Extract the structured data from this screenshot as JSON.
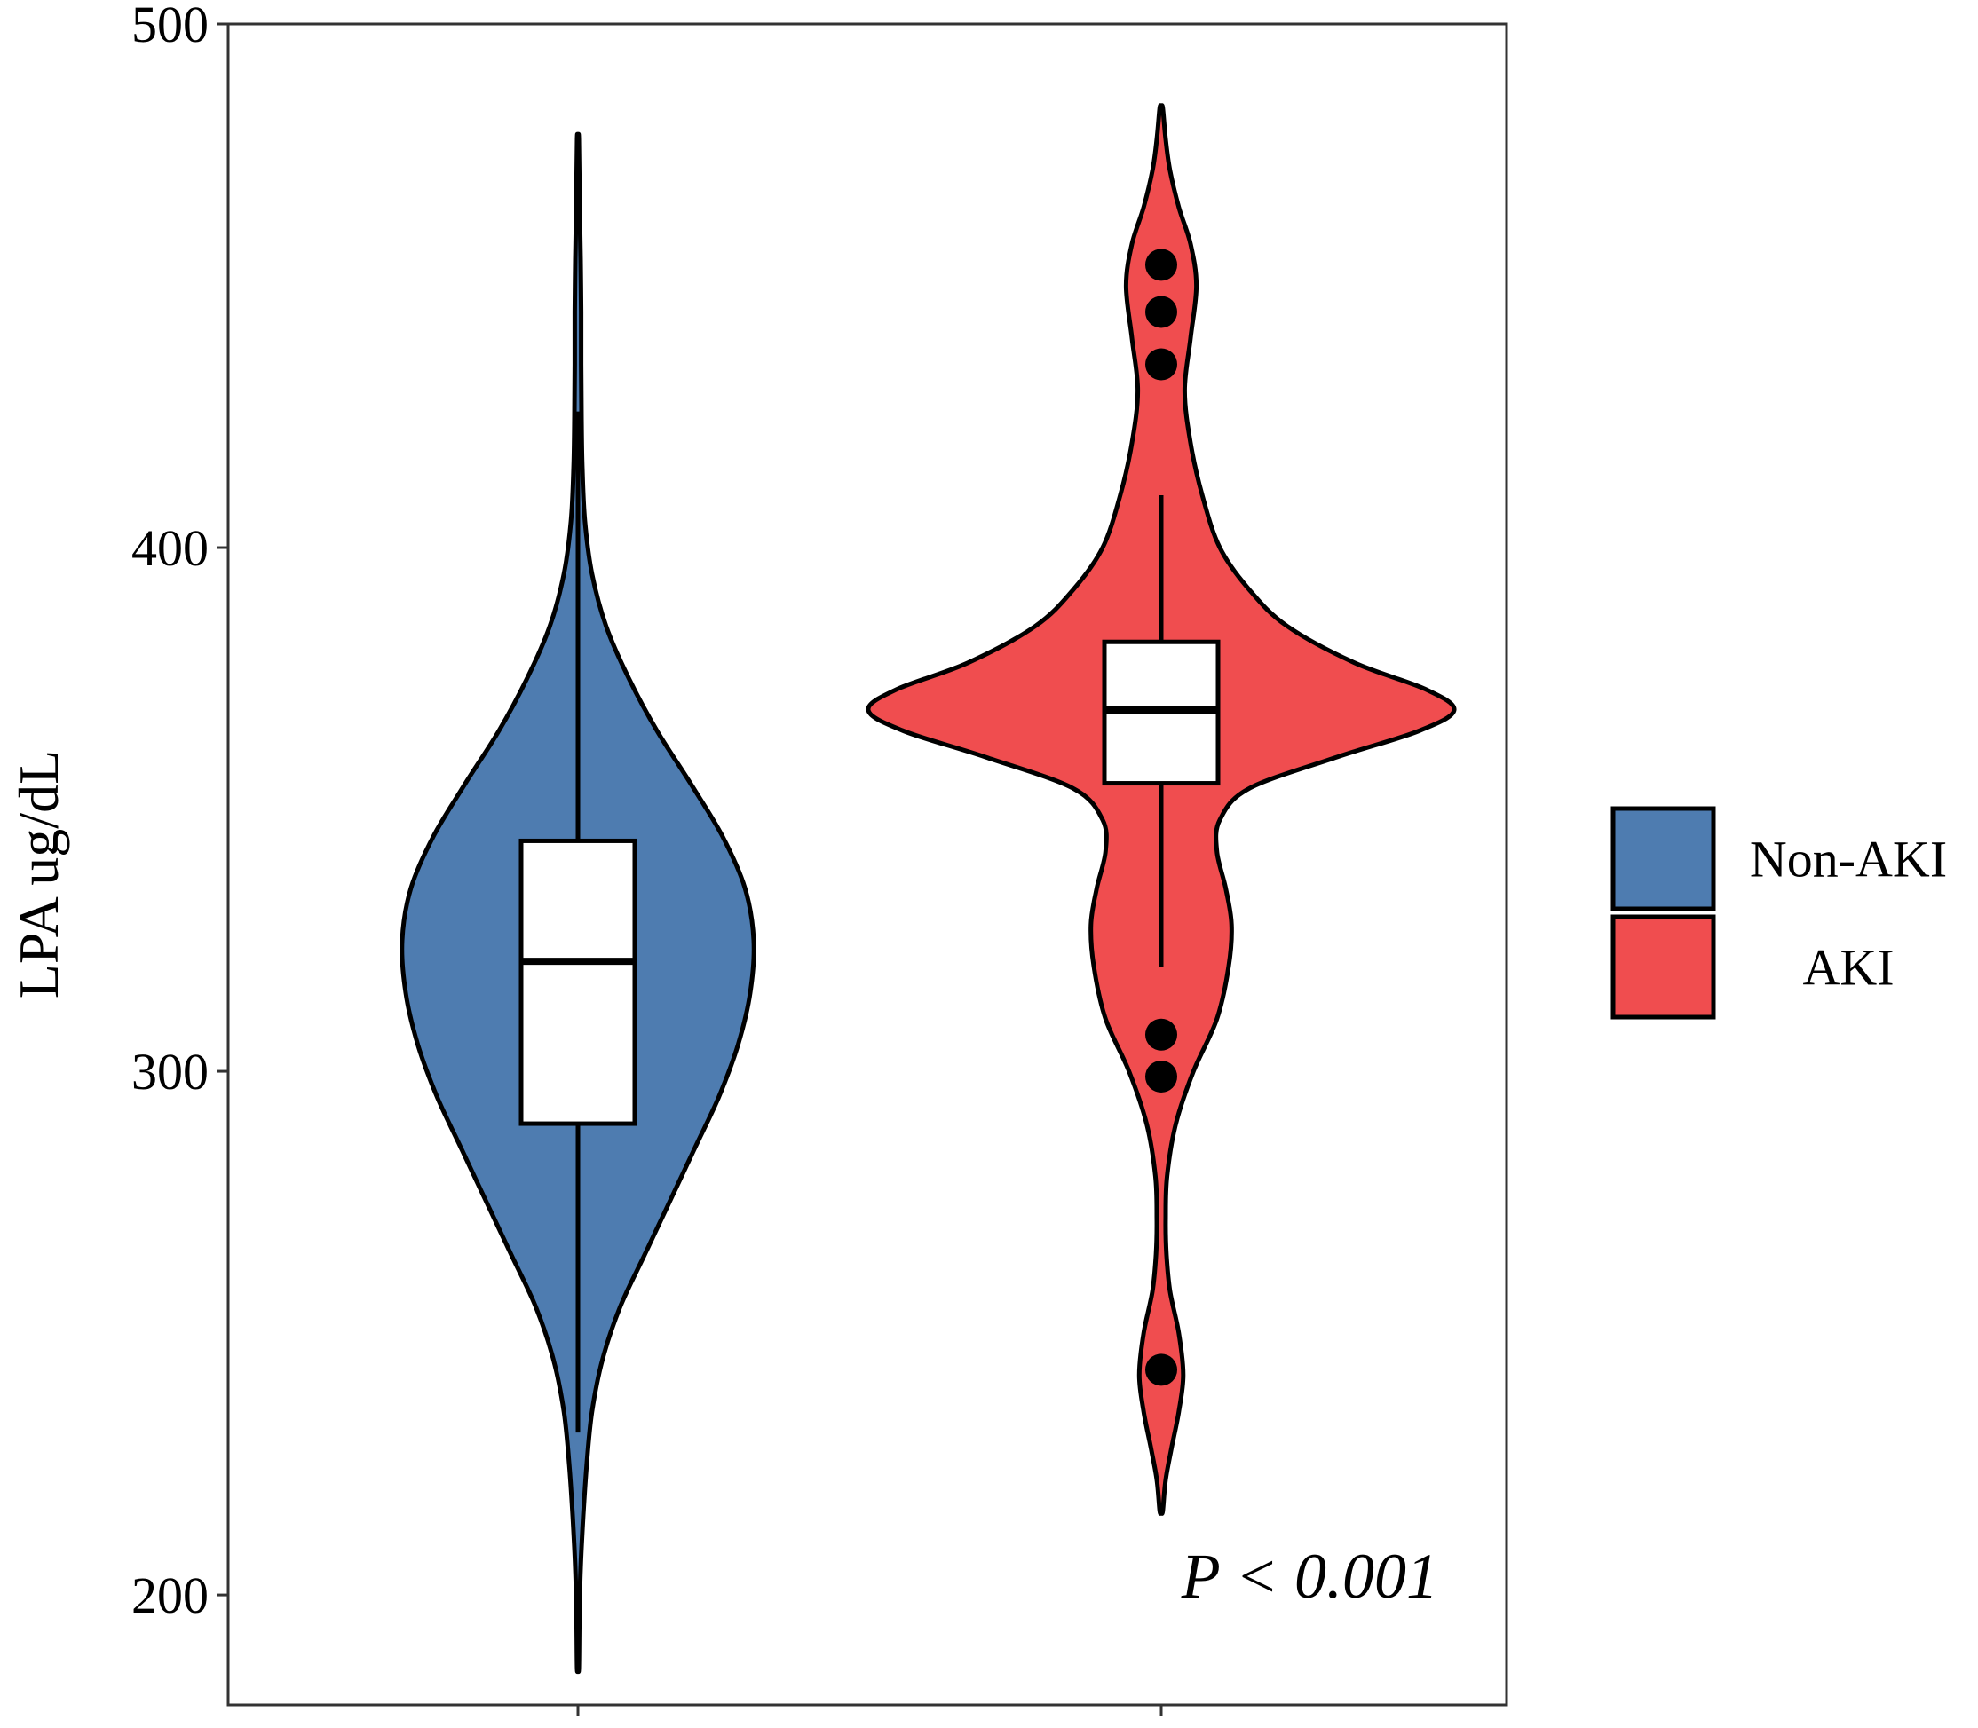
{
  "chart_data": {
    "type": "violin",
    "ylabel": "LPA ug/dL",
    "ylim": [
      179,
      500
    ],
    "y_ticks": [
      200,
      300,
      400,
      500
    ],
    "grid": false,
    "legend_position": "right",
    "annotation": "P < 0.001",
    "series": [
      {
        "name": "Non-AKI",
        "color": "#4e7cb0",
        "whisker_low": 231,
        "q1": 290,
        "median": 321,
        "q3": 344,
        "whisker_high": 426,
        "outliers": [],
        "violin_min": 186,
        "violin_max": 478,
        "density": [
          [
            186,
            0.005
          ],
          [
            195,
            0.008
          ],
          [
            205,
            0.015
          ],
          [
            215,
            0.03
          ],
          [
            225,
            0.05
          ],
          [
            235,
            0.08
          ],
          [
            245,
            0.14
          ],
          [
            255,
            0.24
          ],
          [
            265,
            0.38
          ],
          [
            275,
            0.52
          ],
          [
            285,
            0.66
          ],
          [
            295,
            0.8
          ],
          [
            305,
            0.91
          ],
          [
            315,
            0.98
          ],
          [
            325,
            1.0
          ],
          [
            335,
            0.95
          ],
          [
            345,
            0.82
          ],
          [
            355,
            0.64
          ],
          [
            365,
            0.45
          ],
          [
            375,
            0.29
          ],
          [
            385,
            0.16
          ],
          [
            395,
            0.08
          ],
          [
            405,
            0.04
          ],
          [
            415,
            0.025
          ],
          [
            425,
            0.02
          ],
          [
            435,
            0.018
          ],
          [
            445,
            0.018
          ],
          [
            455,
            0.015
          ],
          [
            465,
            0.01
          ],
          [
            478,
            0.005
          ]
        ]
      },
      {
        "name": "AKI",
        "color": "#f04d4f",
        "whisker_low": 320,
        "q1": 355,
        "median": 369,
        "q3": 382,
        "whisker_high": 410,
        "outliers": [
          454,
          445,
          435,
          307,
          299,
          243
        ],
        "violin_min": 216,
        "violin_max": 484,
        "density": [
          [
            216,
            0.005
          ],
          [
            222,
            0.015
          ],
          [
            228,
            0.035
          ],
          [
            235,
            0.06
          ],
          [
            242,
            0.075
          ],
          [
            250,
            0.06
          ],
          [
            258,
            0.03
          ],
          [
            265,
            0.018
          ],
          [
            272,
            0.015
          ],
          [
            280,
            0.02
          ],
          [
            290,
            0.05
          ],
          [
            300,
            0.11
          ],
          [
            310,
            0.19
          ],
          [
            320,
            0.23
          ],
          [
            328,
            0.24
          ],
          [
            335,
            0.22
          ],
          [
            342,
            0.19
          ],
          [
            348,
            0.2
          ],
          [
            354,
            0.3
          ],
          [
            360,
            0.6
          ],
          [
            365,
            0.88
          ],
          [
            369,
            1.0
          ],
          [
            373,
            0.9
          ],
          [
            378,
            0.66
          ],
          [
            385,
            0.43
          ],
          [
            392,
            0.3
          ],
          [
            400,
            0.2
          ],
          [
            410,
            0.14
          ],
          [
            420,
            0.1
          ],
          [
            430,
            0.08
          ],
          [
            440,
            0.1
          ],
          [
            450,
            0.12
          ],
          [
            458,
            0.1
          ],
          [
            465,
            0.06
          ],
          [
            472,
            0.03
          ],
          [
            478,
            0.015
          ],
          [
            484,
            0.005
          ]
        ]
      }
    ]
  }
}
